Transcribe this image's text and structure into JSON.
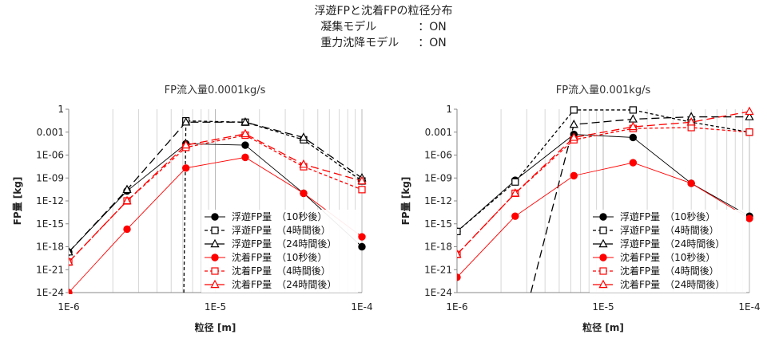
{
  "header": {
    "title": "浮遊FPと沈着FPの粒径分布",
    "conditions": [
      {
        "label": "凝集モデル",
        "value": "：ON"
      },
      {
        "label": "重力沈降モデル",
        "value": "：ON"
      }
    ]
  },
  "chart_data": [
    {
      "type": "line",
      "title": "FP流入量0.0001kg/s",
      "xlabel": "粒径 [m]",
      "ylabel": "FP量 [kg]",
      "xscale": "log",
      "yscale": "log",
      "xlim": [
        1e-06,
        0.0001
      ],
      "ylim": [
        1e-24,
        1
      ],
      "xticks": [
        "1E-6",
        "1E-5",
        "1E-4"
      ],
      "yticks": [
        "1E-24",
        "1E-21",
        "1E-18",
        "1E-15",
        "1E-12",
        "1E-09",
        "1E-06",
        "0.001",
        "1"
      ],
      "grid": "vertical",
      "legend_position": "bottom-right",
      "series": [
        {
          "name": "浮遊FP量　（10秒後）",
          "color": "#000000",
          "dash": "",
          "marker": "filled-circle",
          "x": [
            1e-06,
            2.5e-06,
            6.3e-06,
            1.6e-05,
            4e-05,
            0.0001
          ],
          "y": [
            2e-19,
            2e-11,
            3e-05,
            2e-05,
            1e-11,
            1e-18
          ]
        },
        {
          "name": "浮遊FP量　（4時間後）",
          "color": "#000000",
          "dash": "4,3",
          "marker": "open-square",
          "x": [
            6.1e-06,
            6.3e-06,
            1.6e-05,
            4e-05,
            0.0001
          ],
          "y": [
            1e-24,
            0.03,
            0.02,
            0.0001,
            4e-10
          ]
        },
        {
          "name": "浮遊FP量　（24時間後）",
          "color": "#000000",
          "dash": "10,5",
          "marker": "open-triangle",
          "x": [
            1e-06,
            2.5e-06,
            6.3e-06,
            1.6e-05,
            4e-05,
            0.0001
          ],
          "y": [
            2e-19,
            3e-11,
            0.02,
            0.02,
            0.0002,
            1e-09
          ]
        },
        {
          "name": "沈着FP量　（10秒後）",
          "color": "#ff0000",
          "dash": "",
          "marker": "filled-circle",
          "x": [
            1e-06,
            2.5e-06,
            6.3e-06,
            1.6e-05,
            4e-05,
            0.0001
          ],
          "y": [
            1e-24,
            2e-16,
            2e-08,
            5e-07,
            1e-11,
            2e-17
          ]
        },
        {
          "name": "沈着FP量　（4時間後）",
          "color": "#ff0000",
          "dash": "4,3",
          "marker": "open-square",
          "x": [
            1e-06,
            2.5e-06,
            6.3e-06,
            1.6e-05,
            4e-05,
            0.0001
          ],
          "y": [
            1e-20,
            1e-12,
            1e-05,
            0.0004,
            3e-08,
            3e-11
          ]
        },
        {
          "name": "沈着FP量　（24時間後）",
          "color": "#ff0000",
          "dash": "10,5",
          "marker": "open-triangle",
          "x": [
            1e-06,
            2.5e-06,
            6.3e-06,
            1.6e-05,
            4e-05,
            0.0001
          ],
          "y": [
            1e-20,
            1e-12,
            2e-05,
            0.0006,
            6e-08,
            4e-10
          ]
        }
      ]
    },
    {
      "type": "line",
      "title": "FP流入量0.001kg/s",
      "xlabel": "粒径 [m]",
      "ylabel": "FP量 [kg]",
      "xscale": "log",
      "yscale": "log",
      "xlim": [
        1e-06,
        0.0001
      ],
      "ylim": [
        1e-24,
        1
      ],
      "xticks": [
        "1E-6",
        "1E-5",
        "1E-4"
      ],
      "yticks": [
        "1E-24",
        "1E-21",
        "1E-18",
        "1E-15",
        "1E-12",
        "1E-09",
        "1E-06",
        "0.001",
        "1"
      ],
      "grid": "vertical",
      "legend_position": "bottom-right",
      "series": [
        {
          "name": "浮遊FP量　（10秒後）",
          "color": "#000000",
          "dash": "",
          "marker": "filled-circle",
          "x": [
            1e-06,
            2.5e-06,
            6.3e-06,
            1.6e-05,
            4e-05,
            0.0001
          ],
          "y": [
            1e-16,
            5e-10,
            0.0005,
            0.0002,
            2e-10,
            1e-14
          ]
        },
        {
          "name": "浮遊FP量　（4時間後）",
          "color": "#000000",
          "dash": "4,3",
          "marker": "open-square",
          "x": [
            1e-06,
            2.5e-06,
            6.3e-06,
            1.6e-05,
            4e-05,
            0.0001
          ],
          "y": [
            1e-16,
            3e-10,
            0.8,
            0.8,
            0.02,
            0.001
          ]
        },
        {
          "name": "浮遊FP量　（24時間後）",
          "color": "#000000",
          "dash": "10,5",
          "marker": "open-triangle",
          "x": [
            3.2e-06,
            6.3e-06,
            1.6e-05,
            4e-05,
            0.0001
          ],
          "y": [
            1e-24,
            0.01,
            0.05,
            0.1,
            0.1
          ]
        },
        {
          "name": "沈着FP量　（10秒後）",
          "color": "#ff0000",
          "dash": "",
          "marker": "filled-circle",
          "x": [
            1e-06,
            2.5e-06,
            6.3e-06,
            1.6e-05,
            4e-05,
            0.0001
          ],
          "y": [
            1e-22,
            1e-14,
            2e-09,
            1e-07,
            2e-10,
            5e-15
          ]
        },
        {
          "name": "沈着FP量　（4時間後）",
          "color": "#ff0000",
          "dash": "4,3",
          "marker": "open-square",
          "x": [
            1e-06,
            2.5e-06,
            6.3e-06,
            1.6e-05,
            4e-05,
            0.0001
          ],
          "y": [
            1e-19,
            1e-11,
            0.0001,
            0.003,
            0.004,
            0.001
          ]
        },
        {
          "name": "沈着FP量　（24時間後）",
          "color": "#ff0000",
          "dash": "10,5",
          "marker": "open-triangle",
          "x": [
            1e-06,
            2.5e-06,
            6.3e-06,
            1.6e-05,
            4e-05,
            0.0001
          ],
          "y": [
            1e-19,
            1e-11,
            0.0002,
            0.005,
            0.02,
            0.5
          ]
        }
      ]
    }
  ]
}
